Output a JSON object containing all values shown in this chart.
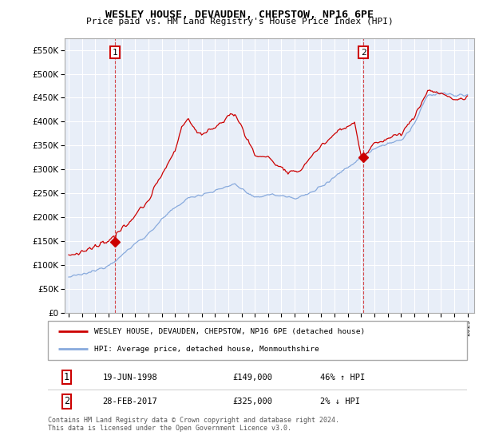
{
  "title": "WESLEY HOUSE, DEVAUDEN, CHEPSTOW, NP16 6PE",
  "subtitle": "Price paid vs. HM Land Registry's House Price Index (HPI)",
  "legend_line1": "WESLEY HOUSE, DEVAUDEN, CHEPSTOW, NP16 6PE (detached house)",
  "legend_line2": "HPI: Average price, detached house, Monmouthshire",
  "annotation1_date": "19-JUN-1998",
  "annotation1_price": "£149,000",
  "annotation1_hpi": "46% ↑ HPI",
  "annotation2_date": "28-FEB-2017",
  "annotation2_price": "£325,000",
  "annotation2_hpi": "2% ↓ HPI",
  "footer": "Contains HM Land Registry data © Crown copyright and database right 2024.\nThis data is licensed under the Open Government Licence v3.0.",
  "red_color": "#cc0000",
  "blue_color": "#88aadd",
  "marker1_year": 1998.47,
  "marker1_value": 149000,
  "marker2_year": 2017.16,
  "marker2_value": 325000,
  "ylim_min": 0,
  "ylim_max": 575000,
  "background_color": "#e8eef8",
  "grid_color": "#ffffff"
}
